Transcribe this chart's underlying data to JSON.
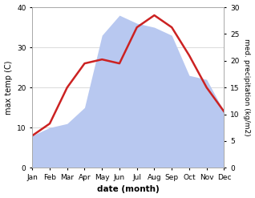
{
  "months": [
    "Jan",
    "Feb",
    "Mar",
    "Apr",
    "May",
    "Jun",
    "Jul",
    "Aug",
    "Sep",
    "Oct",
    "Nov",
    "Dec"
  ],
  "temp": [
    8,
    11,
    20,
    26,
    27,
    26,
    35,
    38,
    35,
    28,
    20,
    14
  ],
  "precip_left_scale": [
    8,
    10,
    11,
    15,
    33,
    38,
    36,
    35,
    33,
    23,
    22,
    14
  ],
  "temp_color": "#cc2222",
  "precip_fill_color": "#b8c8f0",
  "temp_ylim": [
    0,
    40
  ],
  "precip_ylim": [
    0,
    30
  ],
  "temp_yticks": [
    0,
    10,
    20,
    30,
    40
  ],
  "precip_yticks": [
    0,
    5,
    10,
    15,
    20,
    25,
    30
  ],
  "ylabel_left": "max temp (C)",
  "ylabel_right": "med. precipitation (kg/m2)",
  "xlabel": "date (month)",
  "bg_color": "#ffffff",
  "figure_width": 3.18,
  "figure_height": 2.47,
  "dpi": 100
}
